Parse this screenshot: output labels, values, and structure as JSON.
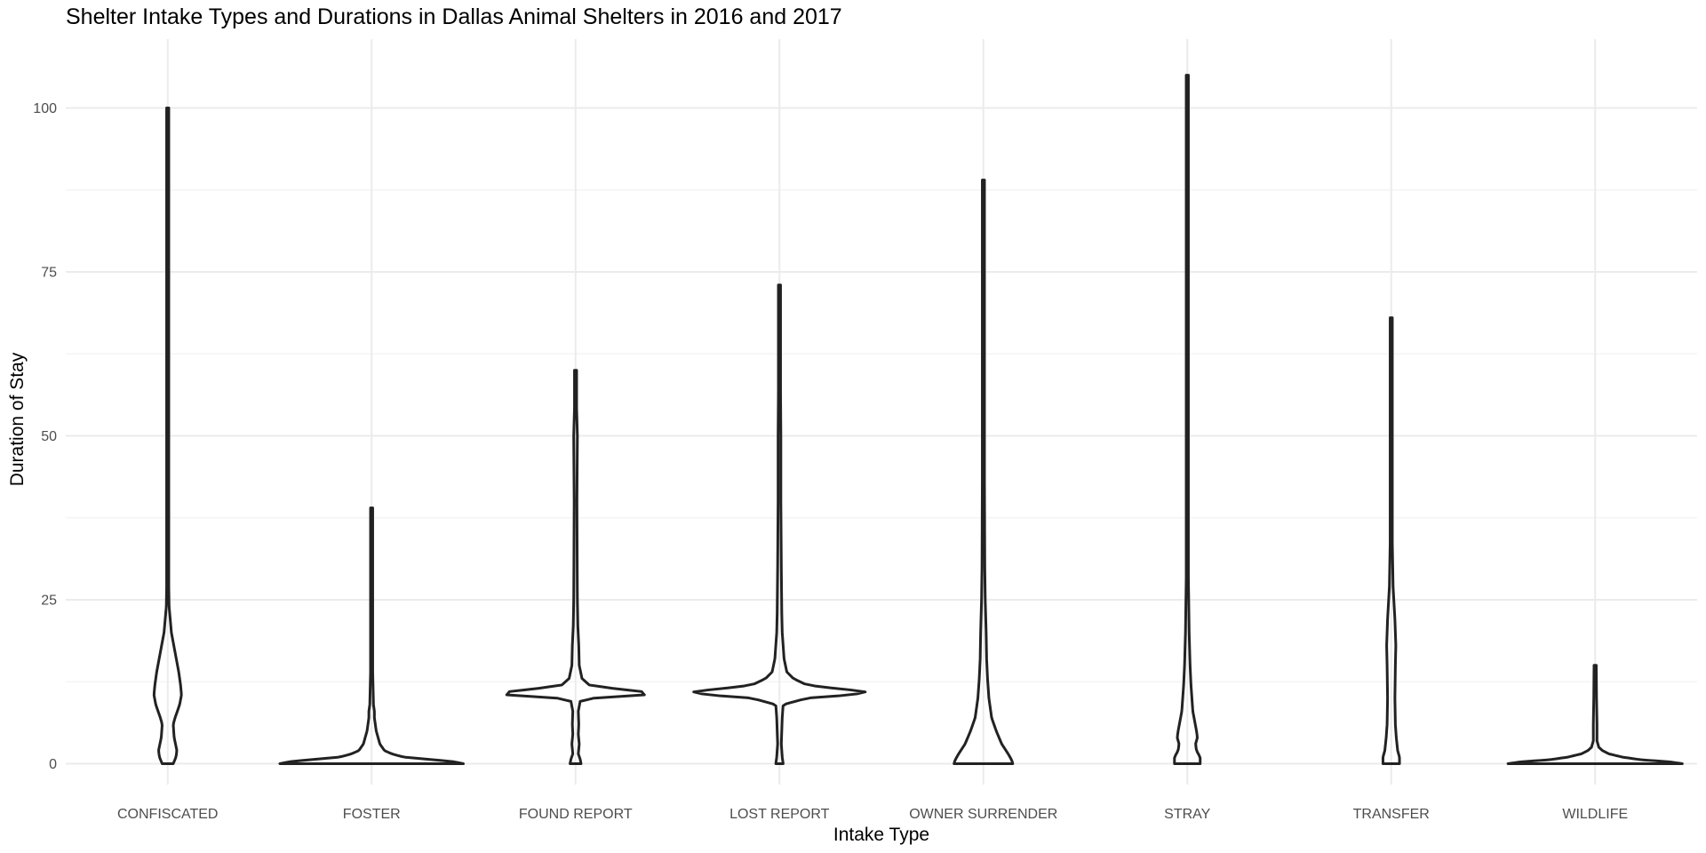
{
  "chart_data": {
    "type": "violin",
    "title": "Shelter Intake Types and Durations in Dallas Animal Shelters in 2016 and 2017",
    "xlabel": "Intake Type",
    "ylabel": "Duration of Stay",
    "ylim": [
      -5,
      110
    ],
    "yticks": [
      0,
      25,
      50,
      75,
      100
    ],
    "grid": true,
    "legend": "none",
    "categories": [
      "CONFISCATED",
      "FOSTER",
      "FOUND REPORT",
      "LOST REPORT",
      "OWNER SURRENDER",
      "STRAY",
      "TRANSFER",
      "WILDLIFE"
    ],
    "series": [
      {
        "category": "CONFISCATED",
        "max": 100,
        "profile": [
          [
            0,
            0.06
          ],
          [
            1,
            0.09
          ],
          [
            2,
            0.1
          ],
          [
            4,
            0.07
          ],
          [
            6,
            0.06
          ],
          [
            7,
            0.08
          ],
          [
            9,
            0.13
          ],
          [
            10.5,
            0.15
          ],
          [
            12,
            0.14
          ],
          [
            14,
            0.12
          ],
          [
            17,
            0.08
          ],
          [
            20,
            0.04
          ],
          [
            24,
            0.015
          ],
          [
            30,
            0.008
          ],
          [
            50,
            0.006
          ],
          [
            100,
            0.005
          ]
        ]
      },
      {
        "category": "FOSTER",
        "max": 39,
        "profile": [
          [
            0,
            1
          ],
          [
            0.3,
            0.9
          ],
          [
            0.7,
            0.6
          ],
          [
            1,
            0.35
          ],
          [
            1.5,
            0.22
          ],
          [
            2,
            0.14
          ],
          [
            3,
            0.09
          ],
          [
            4,
            0.07
          ],
          [
            5,
            0.05
          ],
          [
            6,
            0.04
          ],
          [
            7,
            0.03
          ],
          [
            8,
            0.03
          ],
          [
            9,
            0.02
          ],
          [
            12,
            0.015
          ],
          [
            15,
            0.01
          ],
          [
            20,
            0.008
          ],
          [
            39,
            0.006
          ]
        ]
      },
      {
        "category": "FOUND REPORT",
        "max": 60,
        "profile": [
          [
            0,
            0.06
          ],
          [
            0.7,
            0.05
          ],
          [
            1.5,
            0.03
          ],
          [
            3,
            0.04
          ],
          [
            4.5,
            0.03
          ],
          [
            6,
            0.035
          ],
          [
            8,
            0.03
          ],
          [
            9.5,
            0.05
          ],
          [
            10,
            0.2
          ],
          [
            10.5,
            0.75
          ],
          [
            11,
            0.72
          ],
          [
            11.5,
            0.4
          ],
          [
            12,
            0.15
          ],
          [
            13,
            0.07
          ],
          [
            15,
            0.04
          ],
          [
            18,
            0.035
          ],
          [
            21,
            0.025
          ],
          [
            25,
            0.02
          ],
          [
            30,
            0.018
          ],
          [
            40,
            0.015
          ],
          [
            50,
            0.02
          ],
          [
            55,
            0.01
          ],
          [
            60,
            0.006
          ]
        ]
      },
      {
        "category": "LOST REPORT",
        "max": 73,
        "profile": [
          [
            0,
            0.04
          ],
          [
            1,
            0.03
          ],
          [
            3,
            0.02
          ],
          [
            5,
            0.025
          ],
          [
            7,
            0.03
          ],
          [
            9,
            0.04
          ],
          [
            10,
            0.3
          ],
          [
            10.5,
            0.8
          ],
          [
            11,
            0.95
          ],
          [
            11.5,
            0.6
          ],
          [
            12,
            0.3
          ],
          [
            13,
            0.15
          ],
          [
            14,
            0.08
          ],
          [
            16,
            0.05
          ],
          [
            18,
            0.04
          ],
          [
            20,
            0.03
          ],
          [
            23,
            0.025
          ],
          [
            30,
            0.02
          ],
          [
            40,
            0.015
          ],
          [
            50,
            0.015
          ],
          [
            60,
            0.01
          ],
          [
            73,
            0.006
          ]
        ]
      },
      {
        "category": "OWNER SURRENDER",
        "max": 89,
        "profile": [
          [
            0,
            0.32
          ],
          [
            0.5,
            0.31
          ],
          [
            1.5,
            0.27
          ],
          [
            3,
            0.2
          ],
          [
            5,
            0.14
          ],
          [
            7,
            0.09
          ],
          [
            10,
            0.06
          ],
          [
            13,
            0.045
          ],
          [
            16,
            0.035
          ],
          [
            20,
            0.03
          ],
          [
            25,
            0.02
          ],
          [
            30,
            0.015
          ],
          [
            50,
            0.01
          ],
          [
            89,
            0.006
          ]
        ]
      },
      {
        "category": "STRAY",
        "max": 105,
        "profile": [
          [
            0,
            0.14
          ],
          [
            1,
            0.14
          ],
          [
            2,
            0.1
          ],
          [
            3,
            0.09
          ],
          [
            4,
            0.11
          ],
          [
            5,
            0.1
          ],
          [
            6.5,
            0.08
          ],
          [
            8,
            0.06
          ],
          [
            10,
            0.05
          ],
          [
            12,
            0.04
          ],
          [
            15,
            0.03
          ],
          [
            20,
            0.02
          ],
          [
            30,
            0.01
          ],
          [
            60,
            0.007
          ],
          [
            105,
            0.005
          ]
        ]
      },
      {
        "category": "TRANSFER",
        "max": 68,
        "profile": [
          [
            0,
            0.09
          ],
          [
            1,
            0.09
          ],
          [
            2,
            0.07
          ],
          [
            4,
            0.055
          ],
          [
            6,
            0.045
          ],
          [
            10,
            0.04
          ],
          [
            15,
            0.045
          ],
          [
            18,
            0.05
          ],
          [
            22,
            0.04
          ],
          [
            27,
            0.02
          ],
          [
            35,
            0.01
          ],
          [
            50,
            0.008
          ],
          [
            68,
            0.006
          ]
        ]
      },
      {
        "category": "WILDLIFE",
        "max": 15,
        "profile": [
          [
            0,
            0.95
          ],
          [
            0.3,
            0.8
          ],
          [
            0.6,
            0.5
          ],
          [
            1,
            0.3
          ],
          [
            1.5,
            0.15
          ],
          [
            2,
            0.08
          ],
          [
            2.5,
            0.04
          ],
          [
            3.5,
            0.02
          ],
          [
            6,
            0.02
          ],
          [
            10,
            0.015
          ],
          [
            15,
            0.012
          ]
        ]
      }
    ]
  }
}
